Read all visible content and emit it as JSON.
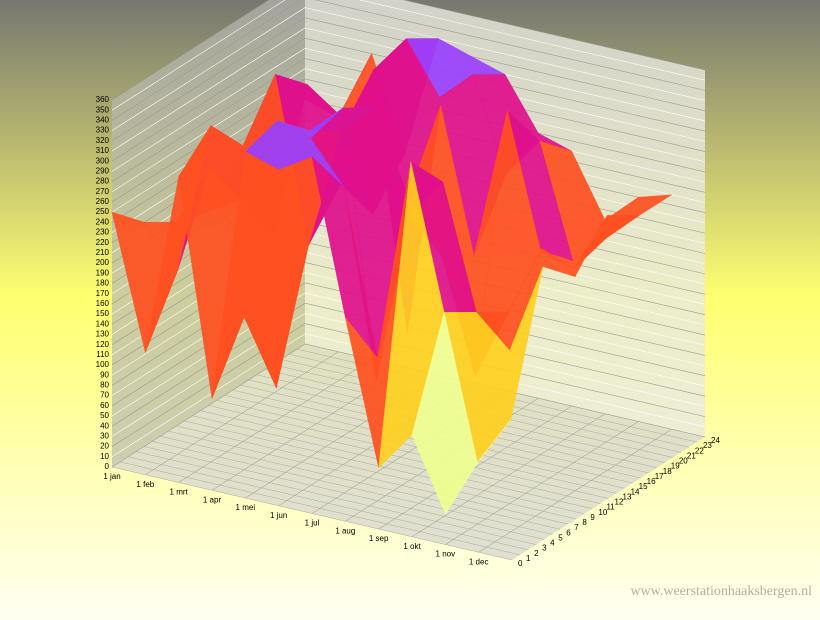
{
  "chart_data": {
    "type": "surface3d",
    "categories": [
      "1 jan",
      "1 feb",
      "1 mrt",
      "1 apr",
      "1 mei",
      "1 jun",
      "1 jul",
      "1 aug",
      "1 sep",
      "1 okt",
      "1 nov",
      "1 dec"
    ],
    "hours": [
      0,
      4,
      8,
      12,
      16,
      20,
      24
    ],
    "z": [
      [
        250,
        120,
        300,
        90,
        340,
        330,
        350,
        200,
        60,
        100,
        30,
        90
      ],
      [
        220,
        180,
        330,
        150,
        350,
        340,
        300,
        140,
        340,
        200,
        60,
        110
      ],
      [
        200,
        260,
        290,
        60,
        320,
        350,
        90,
        260,
        300,
        180,
        150,
        240
      ],
      [
        190,
        210,
        340,
        180,
        300,
        330,
        250,
        200,
        90,
        160,
        230,
        210
      ],
      [
        230,
        150,
        310,
        220,
        340,
        90,
        320,
        180,
        330,
        200,
        190,
        250
      ],
      [
        210,
        280,
        260,
        170,
        350,
        300,
        330,
        240,
        280,
        170,
        200,
        230
      ],
      [
        240,
        230,
        300,
        210,
        330,
        320,
        310,
        260,
        250,
        190,
        220,
        230
      ]
    ],
    "colors": [
      "#8fa0ff",
      "#f0ff90",
      "#ffd020",
      "#ff5020",
      "#e0108c",
      "#9a40ff"
    ],
    "ylim": [
      0,
      360
    ],
    "yticks": [
      0,
      10,
      20,
      30,
      40,
      50,
      60,
      70,
      80,
      90,
      100,
      110,
      120,
      130,
      140,
      150,
      160,
      170,
      180,
      190,
      200,
      210,
      220,
      230,
      240,
      250,
      260,
      270,
      280,
      290,
      300,
      310,
      320,
      330,
      340,
      350,
      360
    ],
    "hticks": [
      0,
      1,
      2,
      3,
      4,
      5,
      6,
      7,
      8,
      9,
      10,
      11,
      12,
      13,
      14,
      15,
      16,
      17,
      18,
      19,
      20,
      21,
      22,
      23,
      24
    ],
    "watermark": "www.weerstationhaaksbergen.nl"
  }
}
